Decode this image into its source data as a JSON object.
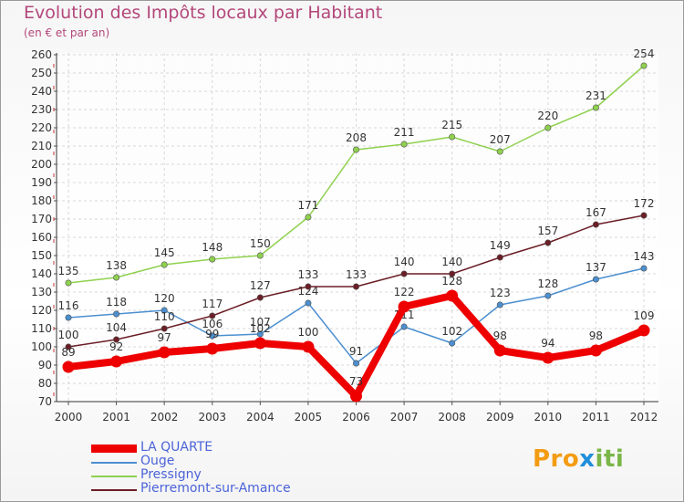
{
  "chart_data": {
    "type": "line",
    "title": "Evolution des Impôts locaux par Habitant",
    "subtitle": "(en € et par an)",
    "xlabel": "",
    "ylabel": "",
    "ylim": [
      70,
      260
    ],
    "yticks": [
      "70",
      "80",
      "90",
      "100",
      "110",
      "120",
      "130",
      "140",
      "150",
      "160",
      "170",
      "180",
      "190",
      "200",
      "210",
      "220",
      "230",
      "240",
      "250",
      "260"
    ],
    "categories": [
      "2000",
      "2001",
      "2002",
      "2003",
      "2004",
      "2005",
      "2006",
      "2007",
      "2008",
      "2009",
      "2010",
      "2011",
      "2012"
    ],
    "grid": true,
    "legend_position": "bottom-left",
    "series": [
      {
        "name": "LA QUARTE",
        "color": "#ee0000",
        "values": [
          89,
          92,
          97,
          99,
          102,
          100,
          73,
          122,
          128,
          98,
          94,
          98,
          109
        ]
      },
      {
        "name": "Ouge",
        "color": "#4b8fd0",
        "values": [
          116,
          118,
          120,
          106,
          107,
          124,
          91,
          111,
          102,
          123,
          128,
          137,
          143
        ]
      },
      {
        "name": "Pressigny",
        "color": "#8fd14f",
        "values": [
          135,
          138,
          145,
          148,
          150,
          171,
          208,
          211,
          215,
          207,
          220,
          231,
          254
        ]
      },
      {
        "name": "Pierremont-sur-Amance",
        "color": "#6b1e26",
        "values": [
          100,
          104,
          110,
          117,
          127,
          133,
          133,
          140,
          140,
          149,
          157,
          167,
          172
        ]
      }
    ]
  },
  "logo": {
    "text_parts": [
      "Pro",
      "x",
      "iti"
    ],
    "colors": [
      "#f39c12",
      "#1f8fdb",
      "#7ab648"
    ]
  }
}
